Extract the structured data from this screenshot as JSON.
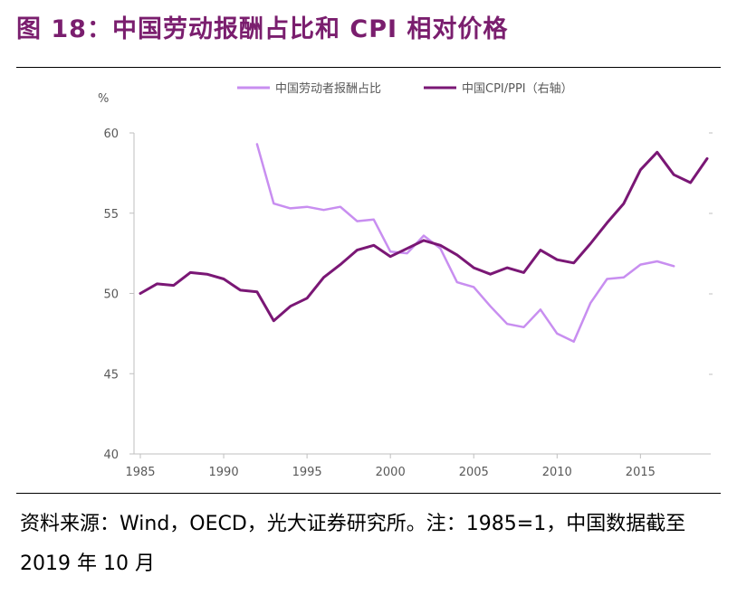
{
  "title": "图 18：中国劳动报酬占比和 CPI 相对价格",
  "source": "资料来源：Wind，OECD，光大证券研究所。注：1985=1，中国数据截至 2019 年 10 月",
  "colors": {
    "title": "#7a1e6e",
    "series_light": "#c88ef0",
    "series_dark": "#7a1775"
  },
  "chart_data": {
    "type": "line",
    "ylabel": "%",
    "ylim": [
      40,
      60
    ],
    "yticks": [
      40,
      45,
      50,
      55,
      60
    ],
    "xlim": [
      1985,
      2019
    ],
    "xticks": [
      1985,
      1990,
      1995,
      2000,
      2005,
      2010,
      2015
    ],
    "grid": false,
    "legend_position": "top",
    "series": [
      {
        "name": "中国劳动者报酬占比",
        "color": "#c88ef0",
        "axis": "left",
        "x": [
          1992,
          1993,
          1994,
          1995,
          1996,
          1997,
          1998,
          1999,
          2000,
          2001,
          2002,
          2003,
          2004,
          2005,
          2006,
          2007,
          2008,
          2009,
          2010,
          2011,
          2012,
          2013,
          2014,
          2015,
          2016,
          2017
        ],
        "values": [
          59.3,
          55.6,
          55.3,
          55.4,
          55.2,
          55.4,
          54.5,
          54.6,
          52.6,
          52.5,
          53.6,
          52.8,
          50.7,
          50.4,
          49.2,
          48.1,
          47.9,
          49.0,
          47.5,
          47.0,
          49.4,
          50.9,
          51.0,
          51.8,
          52.0,
          51.7
        ]
      },
      {
        "name": "中国CPI/PPI（右轴）",
        "color": "#7a1775",
        "axis": "right",
        "x": [
          1985,
          1986,
          1987,
          1988,
          1989,
          1990,
          1991,
          1992,
          1993,
          1994,
          1995,
          1996,
          1997,
          1998,
          1999,
          2000,
          2001,
          2002,
          2003,
          2004,
          2005,
          2006,
          2007,
          2008,
          2009,
          2010,
          2011,
          2012,
          2013,
          2014,
          2015,
          2016,
          2017,
          2018,
          2019
        ],
        "values": [
          50.0,
          50.6,
          50.5,
          51.3,
          51.2,
          50.9,
          50.2,
          50.1,
          48.3,
          49.2,
          49.7,
          51.0,
          51.8,
          52.7,
          53.0,
          52.3,
          52.8,
          53.3,
          53.0,
          52.4,
          51.6,
          51.2,
          51.6,
          51.3,
          52.7,
          52.1,
          51.9,
          53.1,
          54.4,
          55.6,
          57.7,
          58.8,
          57.4,
          56.9,
          58.4
        ]
      }
    ]
  }
}
